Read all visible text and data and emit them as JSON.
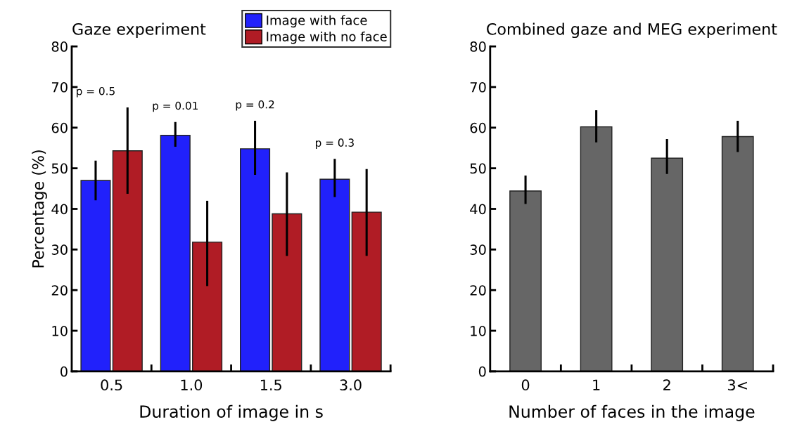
{
  "chart_data": [
    {
      "type": "bar",
      "title": "Gaze experiment",
      "xlabel": "Duration of image in s",
      "ylabel": "Percentage (%)",
      "categories": [
        "0.5",
        "1.0",
        "1.5",
        "3.0"
      ],
      "series": [
        {
          "name": "Image with face",
          "color": "#2121fb",
          "values": [
            47.0,
            58.1,
            54.8,
            47.3
          ],
          "errors": [
            [
              42.1,
              51.9
            ],
            [
              55.3,
              61.4
            ],
            [
              48.4,
              61.7
            ],
            [
              42.9,
              52.3
            ]
          ]
        },
        {
          "name": "Image with no face",
          "color": "#b01c25",
          "values": [
            54.3,
            31.8,
            38.8,
            39.2
          ],
          "errors": [
            [
              43.7,
              65.0
            ],
            [
              21.0,
              42.0
            ],
            [
              28.4,
              49.0
            ],
            [
              28.4,
              49.8
            ]
          ]
        }
      ],
      "annotations": [
        "p = 0.5",
        "p = 0.01",
        "p = 0.2",
        "p = 0.3"
      ],
      "ylim": [
        0,
        80
      ],
      "yticks": [
        0,
        10,
        20,
        30,
        40,
        50,
        60,
        70,
        80
      ],
      "grid": false,
      "legend": "top right"
    },
    {
      "type": "bar",
      "title": "Combined gaze and MEG experiment",
      "xlabel": "Number of faces in the image",
      "categories": [
        "0",
        "1",
        "2",
        "3<"
      ],
      "series": [
        {
          "color": "#666666",
          "values": [
            44.4,
            60.2,
            52.5,
            57.8
          ],
          "errors": [
            [
              41.2,
              48.2
            ],
            [
              56.4,
              64.3
            ],
            [
              48.6,
              57.2
            ],
            [
              54.0,
              61.7
            ]
          ]
        }
      ],
      "ylim": [
        0,
        80
      ],
      "yticks": [
        0,
        10,
        20,
        30,
        40,
        50,
        60,
        70,
        80
      ],
      "grid": false,
      "legend": false
    }
  ]
}
